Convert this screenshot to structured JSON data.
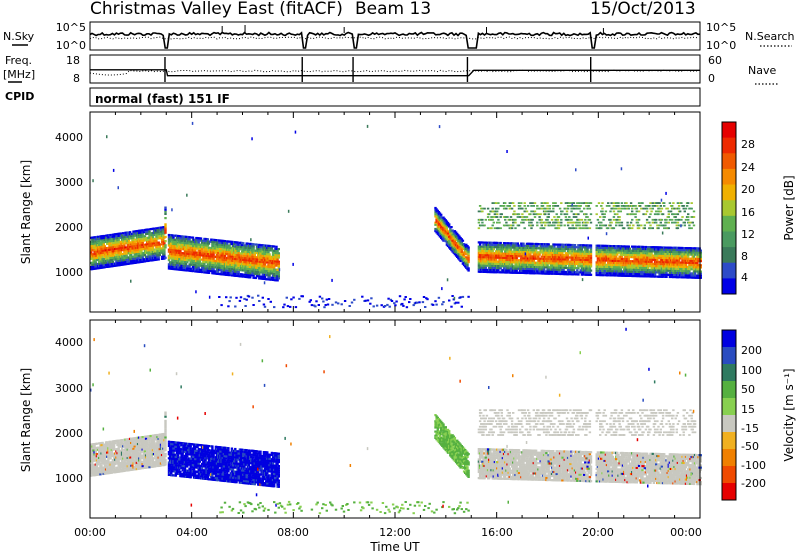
{
  "header": {
    "site": "Christmas Valley East (fitACF)",
    "beam": "Beam 13",
    "date": "15/Oct/2013"
  },
  "noise_panel": {
    "left_label": "N.Sky",
    "left_ticks": [
      "10^5",
      "10^0"
    ],
    "right_ticks": [
      "10^5",
      "10^0"
    ],
    "right_label": "N.Search"
  },
  "freq_panel": {
    "left_label_1": "Freq.",
    "left_label_2": "[MHz]",
    "left_ticks": [
      "18",
      "8"
    ],
    "right_ticks": [
      "60",
      "0"
    ],
    "right_label": "Nave"
  },
  "cpid_panel": {
    "label": "CPID",
    "text": "normal (fast) 151 IF"
  },
  "x_axis": {
    "label": "Time UT",
    "ticks": [
      "00:00",
      "04:00",
      "08:00",
      "12:00",
      "16:00",
      "20:00",
      "00:00"
    ]
  },
  "power_panel": {
    "ylabel": "Slant Range [km]",
    "y_ticks": [
      "4000",
      "3000",
      "2000",
      "1000"
    ],
    "colorbar_label": "Power [dB]",
    "colorbar_ticks": [
      "28",
      "24",
      "20",
      "16",
      "12",
      "8",
      "4"
    ],
    "colors": [
      "#0000e6",
      "#2d4bc8",
      "#3a7a5a",
      "#4a9a60",
      "#5fb050",
      "#a8c830",
      "#f0b000",
      "#f58a00",
      "#f05a00",
      "#ee2a00",
      "#e60000"
    ]
  },
  "velocity_panel": {
    "ylabel": "Slant Range [km]",
    "y_ticks": [
      "4000",
      "3000",
      "2000",
      "1000"
    ],
    "colorbar_label": "Velocity [m s⁻¹]",
    "colorbar_ticks": [
      "200",
      "100",
      "50",
      "15",
      "-15",
      "-50",
      "-100",
      "-200"
    ],
    "colors": [
      "#0000e0",
      "#2a4cc0",
      "#2f7a60",
      "#55b040",
      "#88d050",
      "#c8c8c0",
      "#f0b020",
      "#f08000",
      "#f04a00",
      "#e60000"
    ]
  },
  "chart_data": [
    {
      "type": "line",
      "title": "Christmas Valley East (fitACF)",
      "series": [
        {
          "name": "N.Sky",
          "x": [
            0,
            2.9,
            3.0,
            8.4,
            8.5,
            10.4,
            10.5,
            14.9,
            15.2,
            19.7,
            19.8,
            24
          ],
          "values": [
            30000,
            30000,
            5,
            30000,
            5,
            30000,
            5,
            30000,
            5,
            30000,
            5,
            30000
          ]
        },
        {
          "name": "Freq.",
          "x": [
            0,
            3,
            3.05,
            14.9,
            15.1,
            24
          ],
          "values": [
            14.8,
            14.8,
            11.5,
            11.5,
            14.5,
            14.5
          ]
        }
      ],
      "xlim": [
        0,
        24
      ]
    },
    {
      "type": "heatmap",
      "title": "Power",
      "xlabel": "Time UT",
      "ylabel": "Slant Range [km]",
      "xlim": [
        0,
        24
      ],
      "ylim": [
        200,
        4500
      ],
      "colorbar": {
        "label": "Power [dB]",
        "ticks": [
          28,
          24,
          20,
          16,
          12,
          8,
          4
        ]
      }
    },
    {
      "type": "heatmap",
      "title": "Velocity",
      "xlabel": "Time UT",
      "ylabel": "Slant Range [km]",
      "xlim": [
        0,
        24
      ],
      "ylim": [
        200,
        4500
      ],
      "colorbar": {
        "label": "Velocity [m s⁻¹]",
        "ticks": [
          200,
          100,
          50,
          15,
          -15,
          -50,
          -100,
          -200
        ]
      }
    }
  ]
}
